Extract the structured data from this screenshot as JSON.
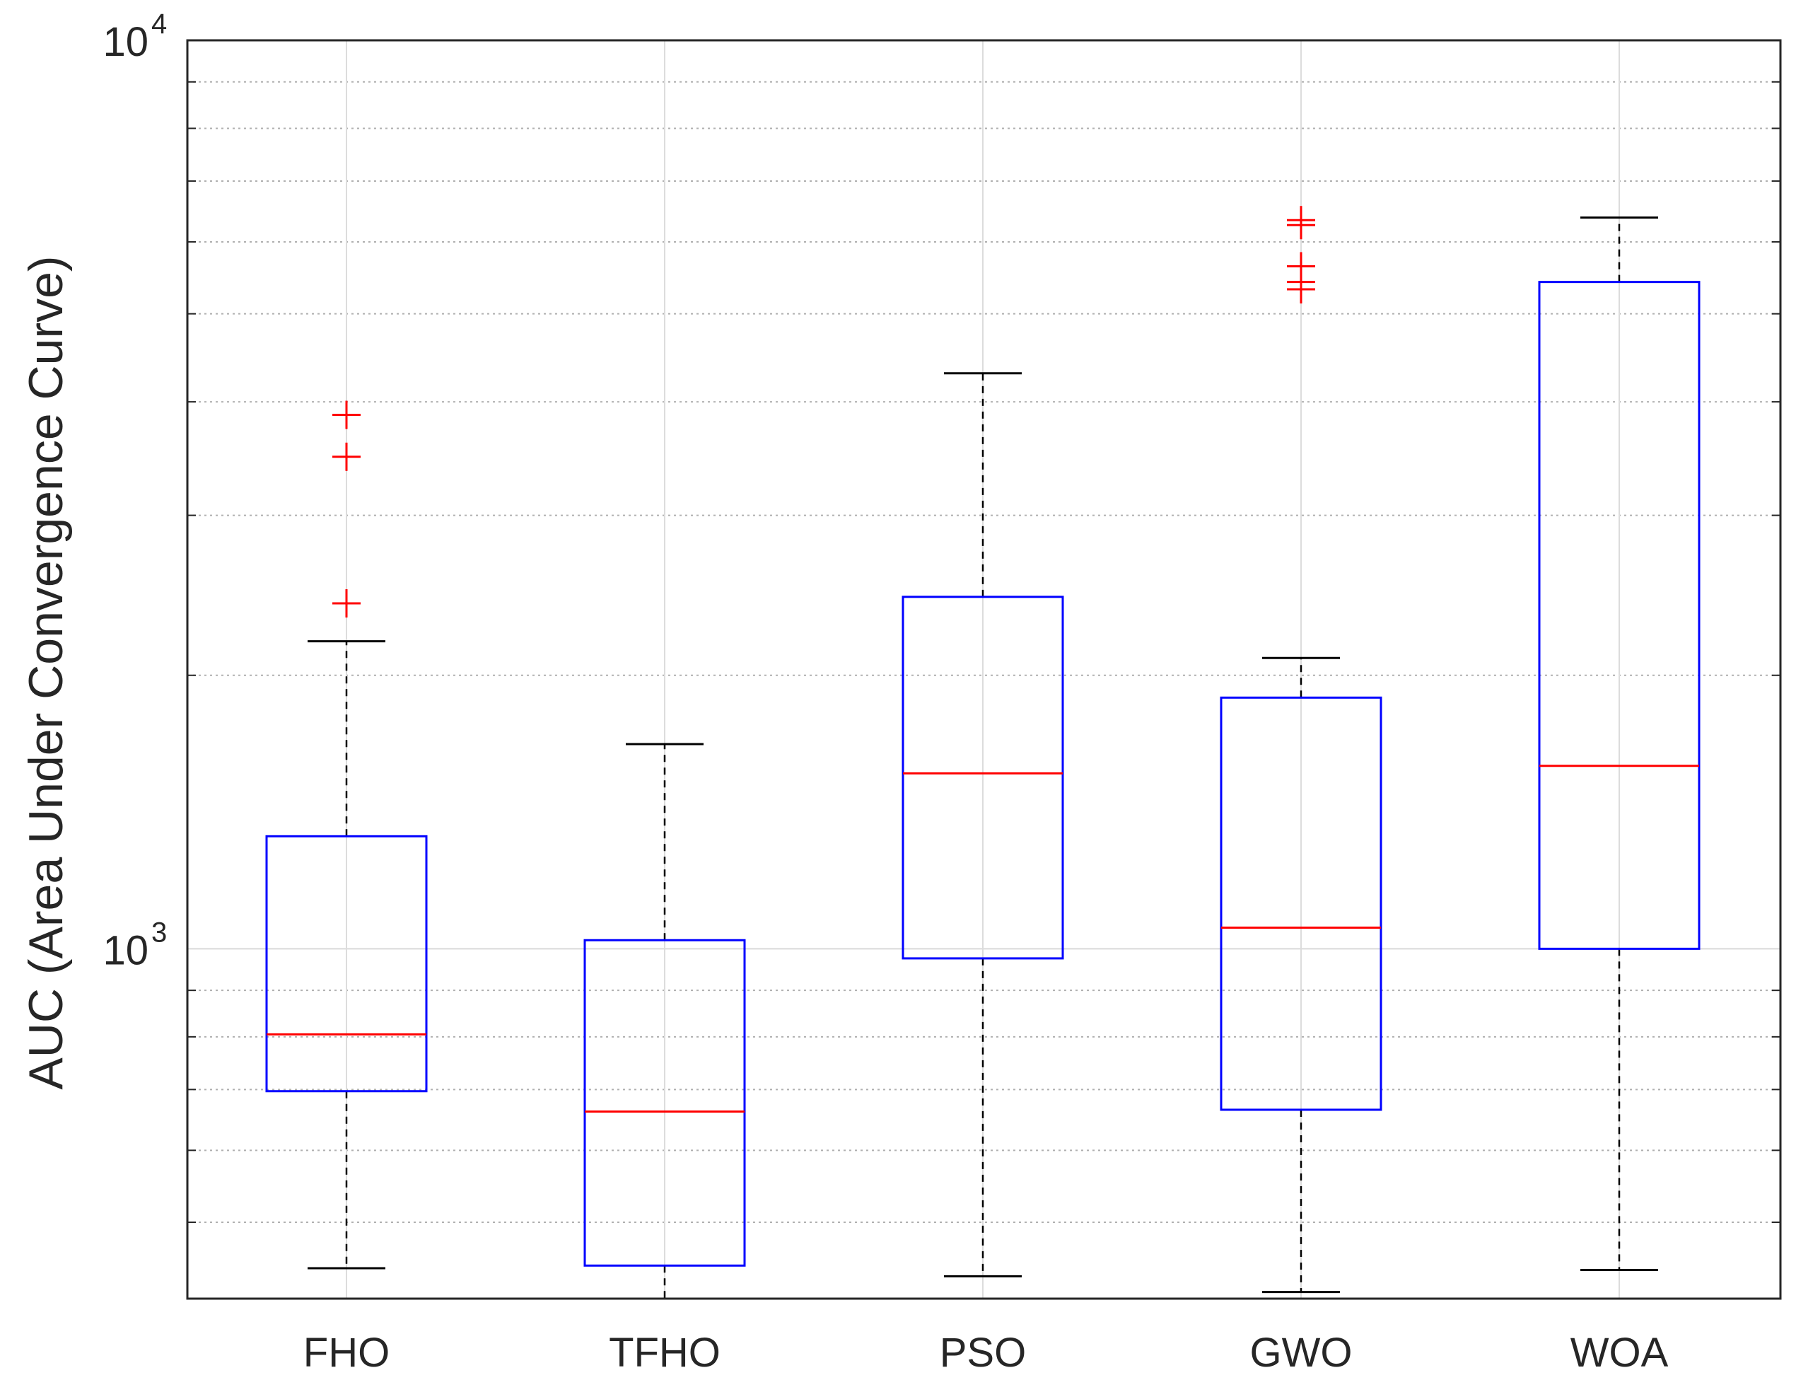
{
  "chart_data": {
    "type": "box",
    "title": "",
    "xlabel": "",
    "ylabel": "AUC (Area Under Convergence Curve)",
    "yscale": "log",
    "ylim": [
      412,
      10000
    ],
    "grid": true,
    "yticks": [
      {
        "base": "10",
        "exp": "3",
        "value": 1000
      },
      {
        "base": "10",
        "exp": "4",
        "value": 10000
      }
    ],
    "colors": {
      "box": "#0000ff",
      "median": "#ff0000",
      "whisker": "#000000",
      "outlier": "#ff0000",
      "grid": "#b0b0b0",
      "axis": "#262626"
    },
    "categories": [
      "FHO",
      "TFHO",
      "PSO",
      "GWO",
      "WOA"
    ],
    "boxes": [
      {
        "name": "FHO",
        "whisker_low": 445,
        "q1": 697,
        "median": 805,
        "q3": 1330,
        "whisker_high": 2180,
        "outliers": [
          2400,
          3480,
          3870
        ]
      },
      {
        "name": "TFHO",
        "whisker_low": 412,
        "q1": 448,
        "median": 662,
        "q3": 1022,
        "whisker_high": 1680,
        "outliers": []
      },
      {
        "name": "PSO",
        "whisker_low": 436,
        "q1": 976,
        "median": 1560,
        "q3": 2440,
        "whisker_high": 4300,
        "outliers": []
      },
      {
        "name": "GWO",
        "whisker_low": 419,
        "q1": 665,
        "median": 1055,
        "q3": 1890,
        "whisker_high": 2090,
        "outliers": [
          5320,
          5420,
          5640,
          6260,
          6340
        ]
      },
      {
        "name": "WOA",
        "whisker_low": 443,
        "q1": 1000,
        "median": 1590,
        "q3": 5420,
        "whisker_high": 6380,
        "outliers": []
      }
    ]
  }
}
